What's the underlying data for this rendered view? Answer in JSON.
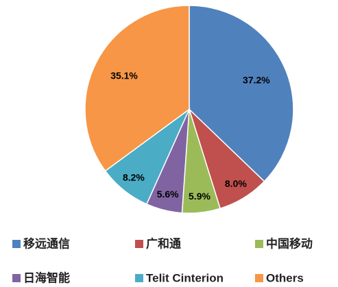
{
  "chart_data": {
    "type": "pie",
    "categories": [
      "移远通信",
      "广和通",
      "中国移动",
      "日海智能",
      "Telit Cinterion",
      "Others"
    ],
    "values": [
      37.2,
      8.0,
      5.9,
      5.6,
      8.2,
      35.1
    ],
    "value_labels": [
      "37.2%",
      "8.0%",
      "5.9%",
      "5.6%",
      "8.2%",
      "35.1%"
    ],
    "colors": [
      "#4f81bd",
      "#c0504d",
      "#9bbb59",
      "#8064a2",
      "#4bacc6",
      "#f79646"
    ],
    "legend": "bottom"
  }
}
